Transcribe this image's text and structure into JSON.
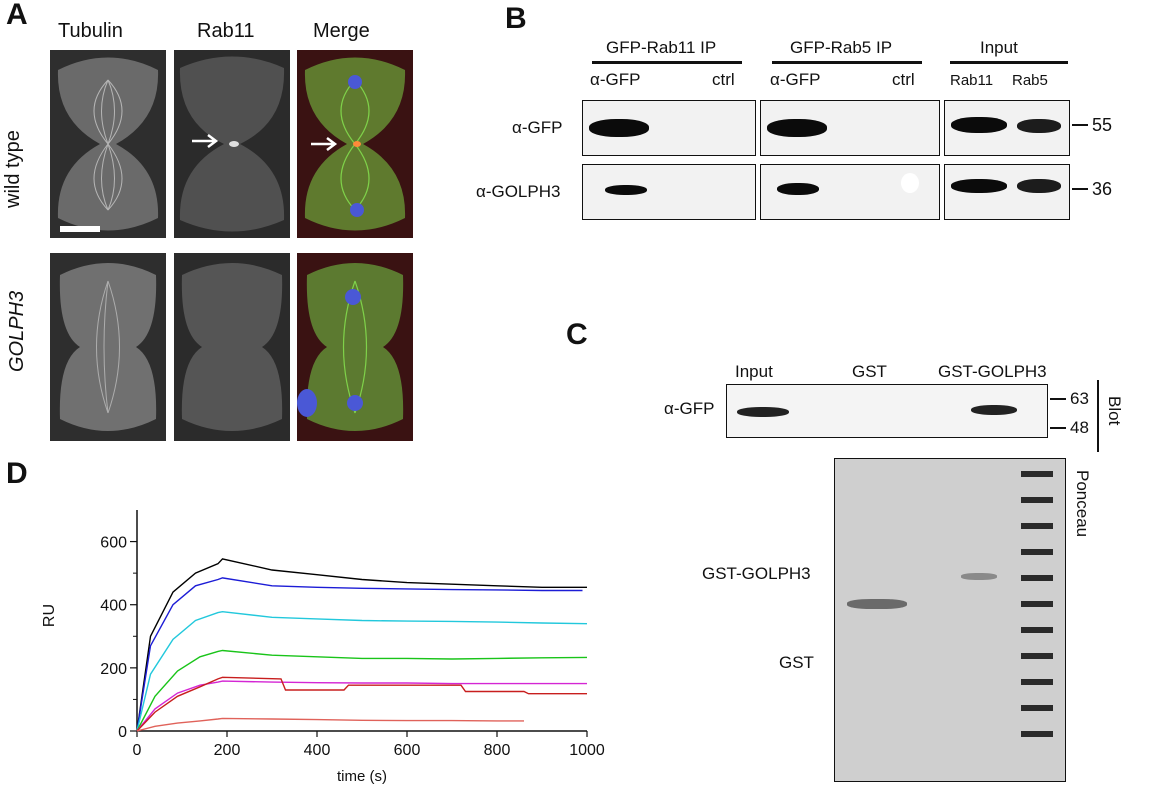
{
  "panelA": {
    "letter": "A",
    "columns": [
      "Tubulin",
      "Rab11",
      "Merge"
    ],
    "rows": [
      {
        "label": "wild type",
        "italic": false
      },
      {
        "label": "GOLPH3",
        "italic": true
      }
    ]
  },
  "panelB": {
    "letter": "B",
    "groups": [
      "GFP-Rab11 IP",
      "GFP-Rab5 IP",
      "Input"
    ],
    "lanes": [
      "α-GFP",
      "ctrl",
      "α-GFP",
      "ctrl",
      "Rab11",
      "Rab5"
    ],
    "rows": [
      "α-GFP",
      "α-GOLPH3"
    ],
    "markers": [
      "55",
      "36"
    ]
  },
  "panelC": {
    "letter": "C",
    "lanes": [
      "Input",
      "GST",
      "GST-GOLPH3"
    ],
    "row_label": "α-GFP",
    "markers": [
      "63",
      "48"
    ],
    "blot_label": "Blot",
    "ponceau_label": "Ponceau",
    "gel_labels": [
      "GST-GOLPH3",
      "GST"
    ]
  },
  "panelD": {
    "letter": "D",
    "chart_data": {
      "type": "line",
      "title": "",
      "xlabel": "time (s)",
      "ylabel": "RU",
      "xlim": [
        0,
        1000
      ],
      "ylim": [
        0,
        700
      ],
      "xticks": [
        0,
        200,
        400,
        600,
        800,
        1000
      ],
      "yticks": [
        0,
        200,
        400,
        600
      ],
      "series": [
        {
          "color": "#000000",
          "x": [
            0,
            30,
            80,
            130,
            180,
            190,
            300,
            400,
            500,
            600,
            700,
            800,
            900,
            1000
          ],
          "y": [
            0,
            300,
            440,
            500,
            530,
            545,
            510,
            495,
            480,
            470,
            465,
            460,
            455,
            455
          ]
        },
        {
          "color": "#1c1cd6",
          "x": [
            0,
            30,
            80,
            130,
            180,
            190,
            300,
            400,
            500,
            600,
            700,
            800,
            900,
            990
          ],
          "y": [
            0,
            270,
            400,
            460,
            480,
            485,
            460,
            455,
            452,
            450,
            448,
            447,
            445,
            445
          ]
        },
        {
          "color": "#22c8dc",
          "x": [
            0,
            30,
            80,
            130,
            180,
            190,
            300,
            400,
            500,
            600,
            700,
            800,
            900,
            1000
          ],
          "y": [
            0,
            180,
            290,
            350,
            375,
            378,
            360,
            355,
            350,
            348,
            347,
            345,
            342,
            340
          ]
        },
        {
          "color": "#19c419",
          "x": [
            0,
            40,
            90,
            140,
            180,
            190,
            300,
            400,
            500,
            600,
            700,
            800,
            900,
            1000
          ],
          "y": [
            0,
            110,
            190,
            235,
            252,
            255,
            240,
            235,
            230,
            230,
            228,
            230,
            232,
            233
          ]
        },
        {
          "color": "#d426d4",
          "x": [
            0,
            40,
            90,
            140,
            180,
            190,
            300,
            400,
            500,
            600,
            700,
            800,
            900,
            1000
          ],
          "y": [
            0,
            70,
            120,
            145,
            155,
            158,
            155,
            153,
            152,
            152,
            150,
            150,
            150,
            150
          ]
        },
        {
          "color": "#c81e1e",
          "x": [
            0,
            40,
            90,
            140,
            180,
            190,
            320,
            330,
            460,
            470,
            720,
            730,
            860,
            870,
            1000
          ],
          "y": [
            0,
            60,
            110,
            140,
            165,
            170,
            165,
            130,
            130,
            145,
            145,
            125,
            125,
            118,
            118
          ]
        },
        {
          "color": "#e0625a",
          "x": [
            0,
            40,
            90,
            140,
            180,
            190,
            300,
            400,
            500,
            600,
            700,
            800,
            860
          ],
          "y": [
            0,
            15,
            25,
            32,
            38,
            40,
            38,
            36,
            34,
            33,
            33,
            32,
            32
          ]
        }
      ]
    }
  }
}
